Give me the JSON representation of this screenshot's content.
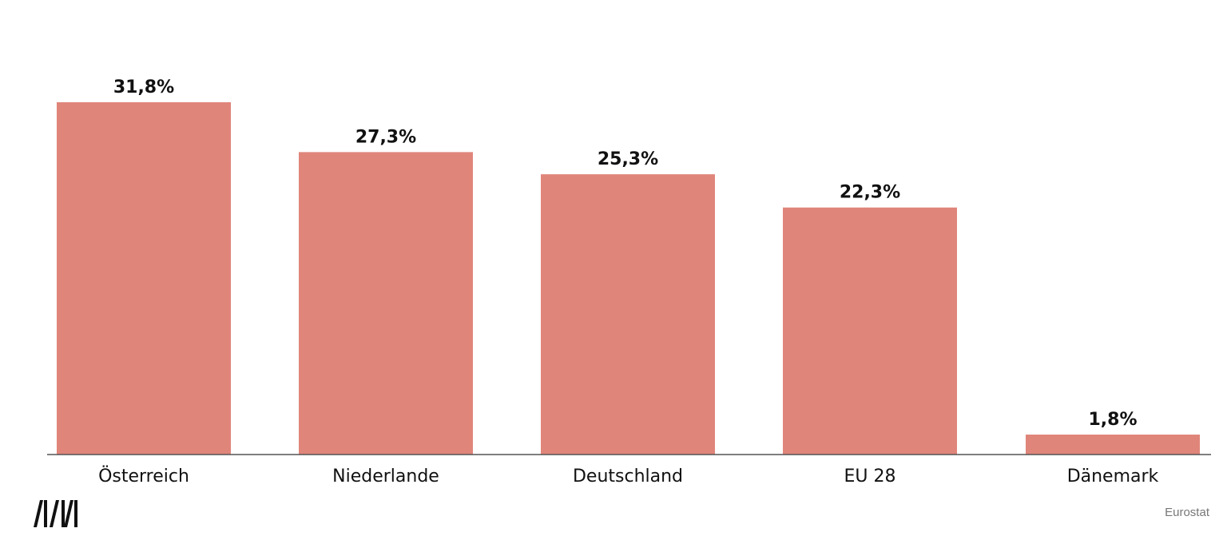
{
  "chart_data": {
    "type": "bar",
    "categories": [
      "Österreich",
      "Niederlande",
      "Deutschland",
      "EU 28",
      "Dänemark"
    ],
    "values": [
      31.8,
      27.3,
      25.3,
      22.3,
      1.8
    ],
    "value_labels": [
      "31,8%",
      "27,3%",
      "25,3%",
      "22,3%",
      "1,8%"
    ],
    "title": "",
    "xlabel": "",
    "ylabel": "",
    "ylim": [
      0,
      31.8
    ],
    "grid": false,
    "bar_color": "#e0857a"
  },
  "source": "Eurostat",
  "logo": {
    "icon": "brand-logo-icon"
  }
}
